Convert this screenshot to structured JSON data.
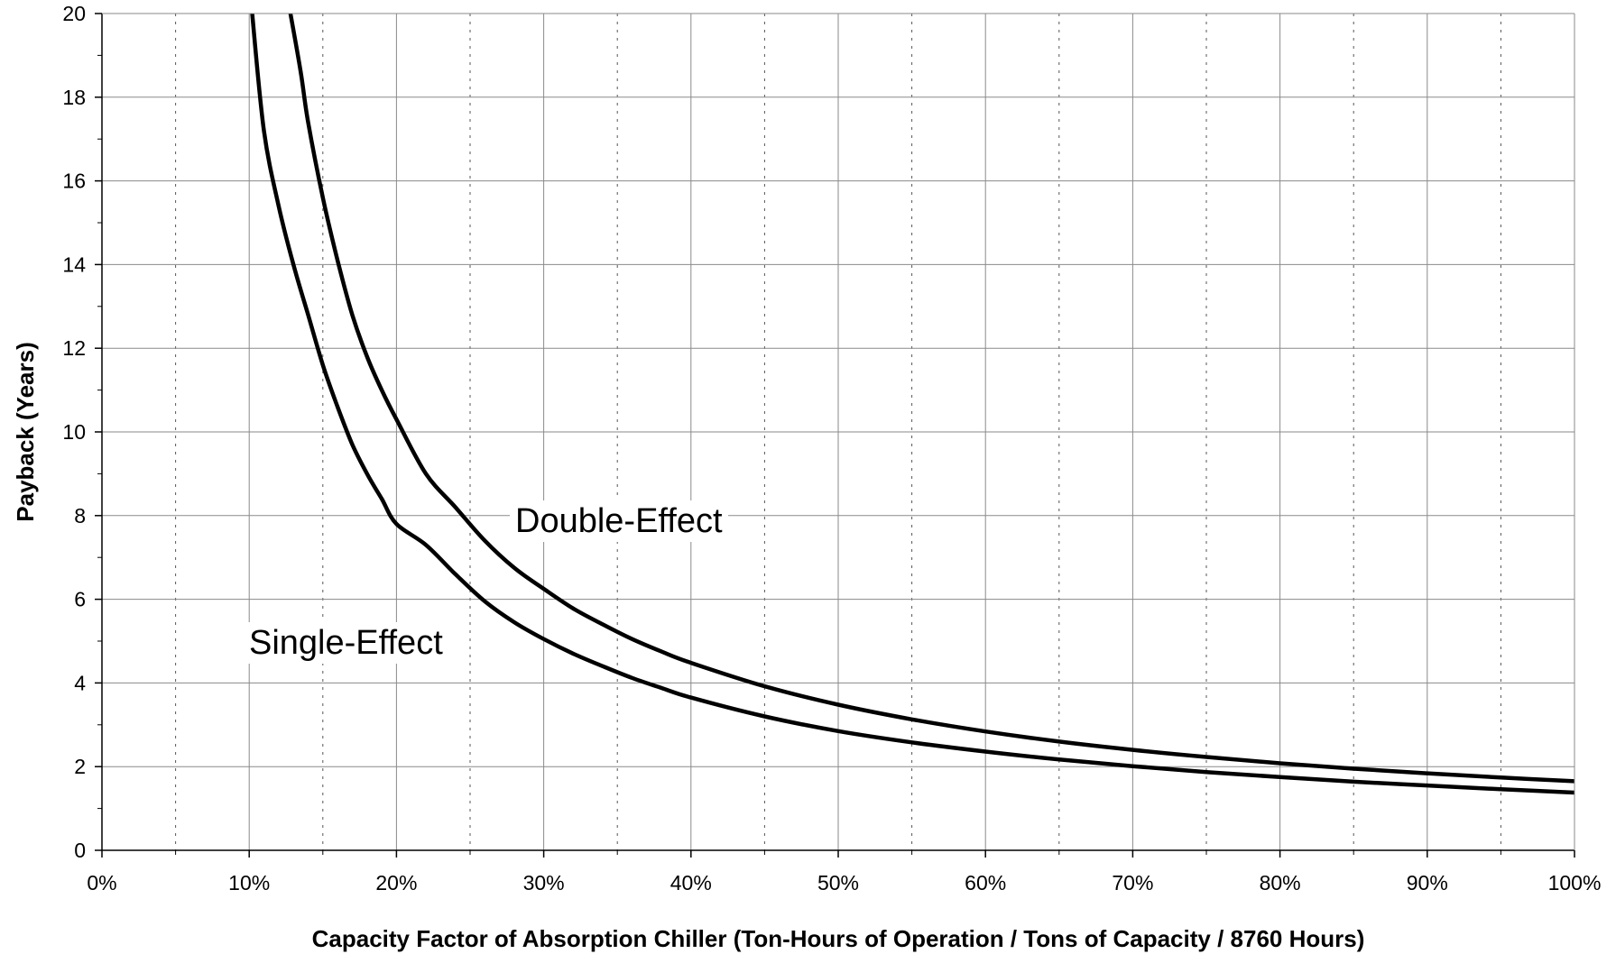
{
  "chart_data": {
    "type": "line",
    "title": "",
    "xlabel": "Capacity Factor of Absorption Chiller (Ton-Hours of Operation / Tons of Capacity / 8760 Hours)",
    "ylabel": "Payback (Years)",
    "xlim": [
      0,
      100
    ],
    "ylim": [
      0,
      20
    ],
    "x_major_ticks": [
      0,
      10,
      20,
      30,
      40,
      50,
      60,
      70,
      80,
      90,
      100
    ],
    "x_tick_labels": [
      "0%",
      "10%",
      "20%",
      "30%",
      "40%",
      "50%",
      "60%",
      "70%",
      "80%",
      "90%",
      "100%"
    ],
    "x_minor_gridlines": [
      5,
      15,
      25,
      35,
      45,
      55,
      65,
      75,
      85,
      95
    ],
    "y_major_ticks": [
      0,
      2,
      4,
      6,
      8,
      10,
      12,
      14,
      16,
      18,
      20
    ],
    "y_tick_labels": [
      "0",
      "2",
      "4",
      "6",
      "8",
      "10",
      "12",
      "14",
      "16",
      "18",
      "20"
    ],
    "grid": true,
    "legend": "none (series labelled directly on plot)",
    "series": [
      {
        "name": "Single-Effect",
        "color": "#000000",
        "x": [
          10.2,
          11,
          12,
          13,
          14,
          15,
          16,
          17,
          18,
          19,
          20,
          22,
          24,
          26,
          28,
          30,
          32,
          34,
          36,
          38,
          40,
          45,
          50,
          55,
          60,
          65,
          70,
          75,
          80,
          85,
          90,
          95,
          100
        ],
        "y": [
          20,
          17.2,
          15.4,
          14.0,
          12.8,
          11.6,
          10.6,
          9.7,
          9.0,
          8.4,
          7.8,
          7.3,
          6.6,
          5.95,
          5.45,
          5.05,
          4.7,
          4.4,
          4.12,
          3.88,
          3.65,
          3.2,
          2.85,
          2.58,
          2.36,
          2.17,
          2.01,
          1.87,
          1.75,
          1.64,
          1.55,
          1.46,
          1.38
        ]
      },
      {
        "name": "Double-Effect",
        "color": "#000000",
        "x": [
          12.8,
          13.5,
          14,
          15,
          16,
          17,
          18,
          19,
          20,
          22,
          24,
          26,
          28,
          30,
          32,
          34,
          36,
          38,
          40,
          45,
          50,
          55,
          60,
          65,
          70,
          75,
          80,
          85,
          90,
          95,
          100
        ],
        "y": [
          20,
          18.6,
          17.4,
          15.6,
          14.1,
          12.8,
          11.8,
          11.0,
          10.3,
          9.0,
          8.2,
          7.4,
          6.75,
          6.25,
          5.78,
          5.4,
          5.05,
          4.75,
          4.48,
          3.92,
          3.48,
          3.13,
          2.84,
          2.6,
          2.4,
          2.23,
          2.08,
          1.95,
          1.84,
          1.74,
          1.65
        ]
      }
    ],
    "annotations": [
      {
        "text": "Double-Effect",
        "series": "Double-Effect"
      },
      {
        "text": "Single-Effect",
        "series": "Single-Effect"
      }
    ]
  }
}
